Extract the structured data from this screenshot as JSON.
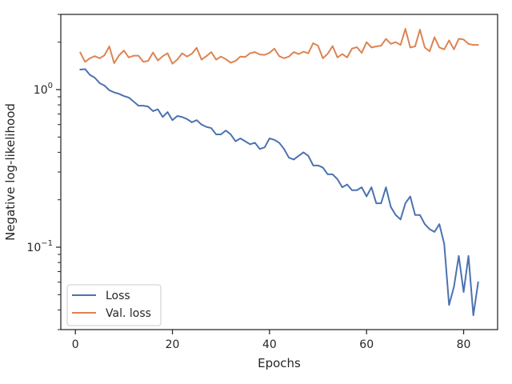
{
  "chart_data": {
    "type": "line",
    "xlabel": "Epochs",
    "ylabel": "Negative log-likelihood",
    "y_scale": "log",
    "xlim": [
      -3,
      87
    ],
    "ylim": [
      0.03,
      3.0
    ],
    "x_ticks": [
      {
        "value": 0,
        "label": "0"
      },
      {
        "value": 20,
        "label": "20"
      },
      {
        "value": 40,
        "label": "40"
      },
      {
        "value": 60,
        "label": "60"
      },
      {
        "value": 80,
        "label": "80"
      }
    ],
    "y_major_ticks": [
      {
        "value": 1,
        "base": "10",
        "exp": "0"
      },
      {
        "value": 0.1,
        "base": "10",
        "exp": "−1"
      }
    ],
    "grid": false,
    "legend_position": "lower-left",
    "x": [
      1,
      2,
      3,
      4,
      5,
      6,
      7,
      8,
      9,
      10,
      11,
      12,
      13,
      14,
      15,
      16,
      17,
      18,
      19,
      20,
      21,
      22,
      23,
      24,
      25,
      26,
      27,
      28,
      29,
      30,
      31,
      32,
      33,
      34,
      35,
      36,
      37,
      38,
      39,
      40,
      41,
      42,
      43,
      44,
      45,
      46,
      47,
      48,
      49,
      50,
      51,
      52,
      53,
      54,
      55,
      56,
      57,
      58,
      59,
      60,
      61,
      62,
      63,
      64,
      65,
      66,
      67,
      68,
      69,
      70,
      71,
      72,
      73,
      74,
      75,
      76,
      77,
      78,
      79,
      80,
      81,
      82,
      83
    ],
    "series": [
      {
        "name": "Loss",
        "color": "#4c72b0",
        "values": [
          1.34,
          1.35,
          1.24,
          1.19,
          1.1,
          1.06,
          0.99,
          0.96,
          0.94,
          0.91,
          0.89,
          0.84,
          0.79,
          0.79,
          0.78,
          0.73,
          0.75,
          0.67,
          0.72,
          0.64,
          0.68,
          0.67,
          0.65,
          0.62,
          0.64,
          0.6,
          0.58,
          0.57,
          0.52,
          0.52,
          0.55,
          0.52,
          0.47,
          0.49,
          0.47,
          0.45,
          0.46,
          0.42,
          0.43,
          0.49,
          0.48,
          0.46,
          0.42,
          0.37,
          0.36,
          0.38,
          0.4,
          0.38,
          0.33,
          0.33,
          0.32,
          0.29,
          0.29,
          0.27,
          0.24,
          0.25,
          0.23,
          0.23,
          0.24,
          0.21,
          0.24,
          0.19,
          0.19,
          0.24,
          0.18,
          0.16,
          0.15,
          0.19,
          0.21,
          0.16,
          0.16,
          0.14,
          0.13,
          0.125,
          0.14,
          0.105,
          0.043,
          0.056,
          0.088,
          0.052,
          0.088,
          0.037,
          0.06
        ]
      },
      {
        "name": "Val. loss",
        "color": "#dd8452",
        "values": [
          1.72,
          1.5,
          1.58,
          1.63,
          1.58,
          1.65,
          1.88,
          1.47,
          1.65,
          1.77,
          1.6,
          1.64,
          1.64,
          1.5,
          1.52,
          1.72,
          1.53,
          1.63,
          1.7,
          1.46,
          1.55,
          1.7,
          1.62,
          1.69,
          1.84,
          1.55,
          1.63,
          1.73,
          1.55,
          1.62,
          1.56,
          1.48,
          1.52,
          1.62,
          1.61,
          1.7,
          1.73,
          1.67,
          1.66,
          1.71,
          1.82,
          1.63,
          1.58,
          1.62,
          1.73,
          1.68,
          1.74,
          1.7,
          1.97,
          1.9,
          1.58,
          1.69,
          1.89,
          1.6,
          1.68,
          1.6,
          1.82,
          1.86,
          1.71,
          2.0,
          1.85,
          1.88,
          1.9,
          2.1,
          1.95,
          2.0,
          1.92,
          2.43,
          1.85,
          1.88,
          2.4,
          1.85,
          1.75,
          2.15,
          1.85,
          1.8,
          2.05,
          1.8,
          2.1,
          2.08,
          1.95,
          1.92,
          1.92
        ]
      }
    ]
  }
}
